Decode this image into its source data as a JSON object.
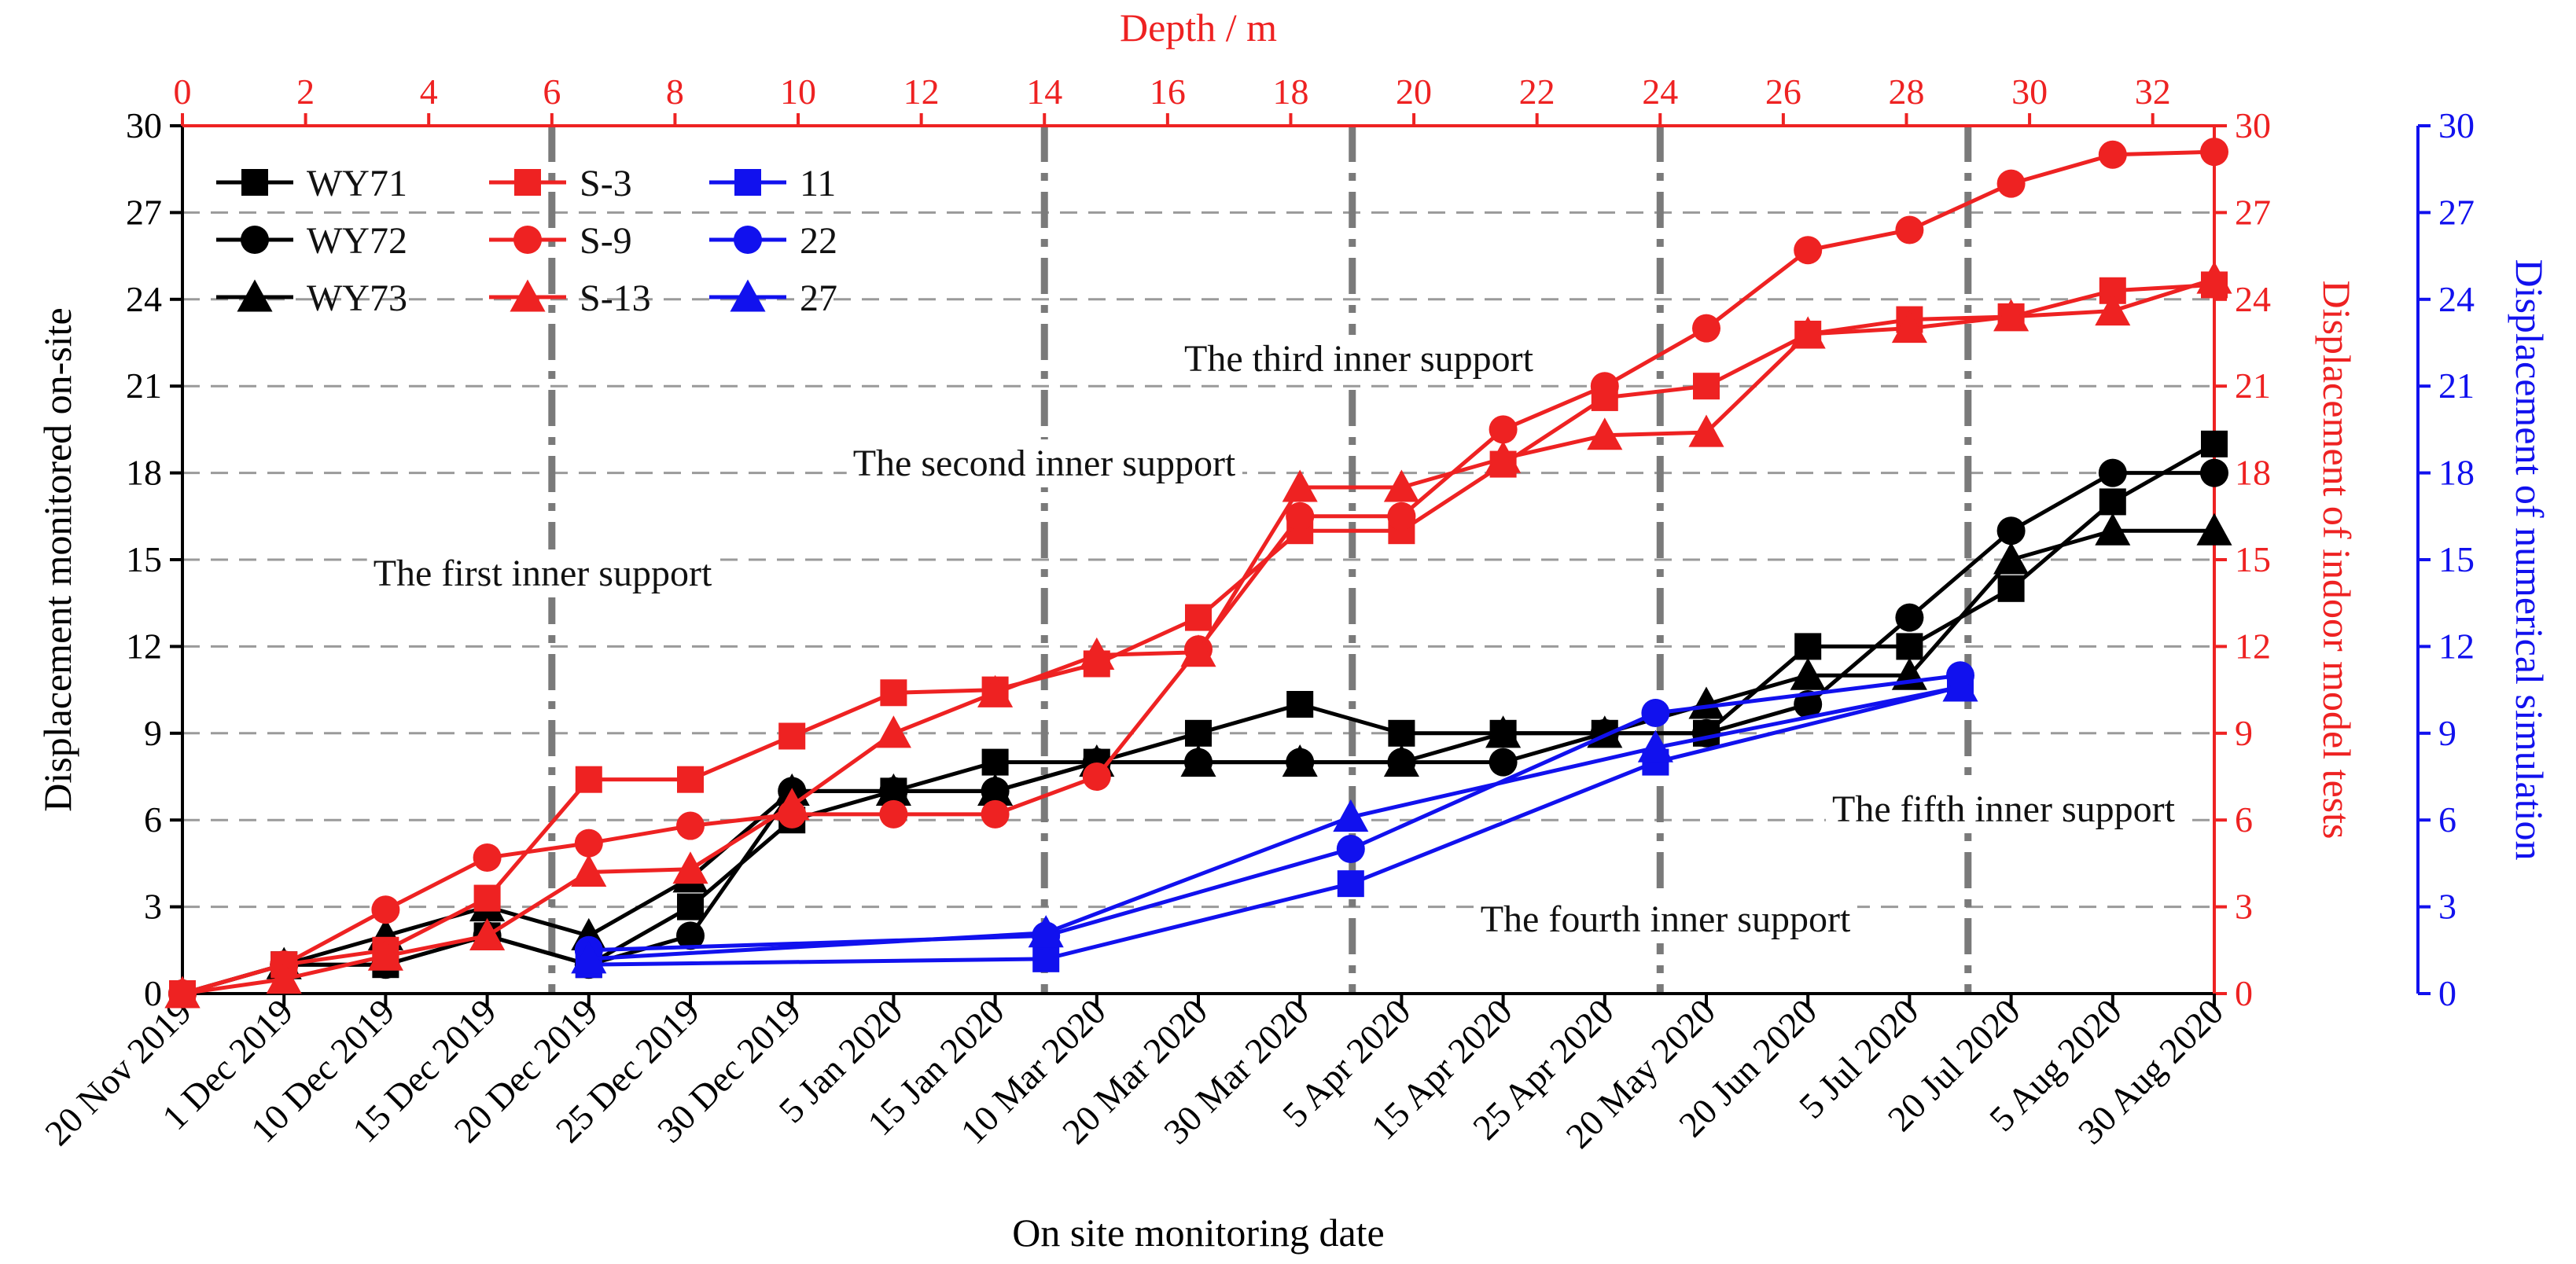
{
  "colors": {
    "black": "#000000",
    "red": "#ee2222",
    "blue": "#1111ee",
    "grid": "#9a9a9a",
    "vline": "#7a7a7a"
  },
  "chart_data": {
    "type": "line",
    "categories": [
      "20 Nov 2019",
      "1 Dec 2019",
      "10 Dec 2019",
      "15 Dec 2019",
      "20 Dec 2019",
      "25 Dec 2019",
      "30 Dec 2019",
      "5 Jan 2020",
      "15 Jan 2020",
      "10 Mar 2020",
      "20 Mar 2020",
      "30 Mar 2020",
      "5 Apr 2020",
      "15 Apr 2020",
      "25 Apr 2020",
      "20 May 2020",
      "20 Jun 2020",
      "5 Jul 2020",
      "20 Jul 2020",
      "5 Aug 2020",
      "30 Aug 2020"
    ],
    "xlabel": "On site monitoring date",
    "top_xlabel": "Depth / m",
    "top_xlim": [
      0,
      33
    ],
    "top_ticks": [
      "0",
      "2",
      "4",
      "6",
      "8",
      "10",
      "12",
      "14",
      "16",
      "18",
      "20",
      "22",
      "24",
      "26",
      "28",
      "30",
      "32"
    ],
    "ylabel_left": "Displacement monitored on-site",
    "ylabel_right1": "Displacement of indoor model tests",
    "ylabel_right2": "Displacement of numerical simulation",
    "ylim": [
      0,
      30
    ],
    "y_ticks": [
      "0",
      "3",
      "6",
      "9",
      "12",
      "15",
      "18",
      "21",
      "24",
      "27",
      "30"
    ],
    "grid": "horizontal dashed",
    "legend_position": "top-left",
    "series": [
      {
        "name": "WY71",
        "axis": "onsite",
        "color": "black",
        "marker": "square",
        "points": [
          [
            0,
            0
          ],
          [
            1,
            1
          ],
          [
            2,
            1
          ],
          [
            3,
            2
          ],
          [
            4,
            1
          ],
          [
            5,
            3
          ],
          [
            6,
            6
          ],
          [
            7,
            7
          ],
          [
            8,
            8
          ],
          [
            9,
            8
          ],
          [
            10,
            9
          ],
          [
            11,
            10
          ],
          [
            12,
            9
          ],
          [
            13,
            9
          ],
          [
            14,
            9
          ],
          [
            15,
            9
          ],
          [
            16,
            12
          ],
          [
            17,
            12
          ],
          [
            18,
            14
          ],
          [
            19,
            17
          ],
          [
            20,
            19
          ]
        ]
      },
      {
        "name": "WY72",
        "axis": "onsite",
        "color": "black",
        "marker": "circle",
        "points": [
          [
            0,
            0
          ],
          [
            1,
            1
          ],
          [
            2,
            1
          ],
          [
            3,
            2
          ],
          [
            4,
            1
          ],
          [
            5,
            2
          ],
          [
            6,
            7
          ],
          [
            7,
            7
          ],
          [
            8,
            7
          ],
          [
            9,
            8
          ],
          [
            10,
            8
          ],
          [
            11,
            8
          ],
          [
            12,
            8
          ],
          [
            13,
            8
          ],
          [
            14,
            9
          ],
          [
            15,
            9
          ],
          [
            16,
            10
          ],
          [
            17,
            13
          ],
          [
            18,
            16
          ],
          [
            19,
            18
          ],
          [
            20,
            18
          ]
        ]
      },
      {
        "name": "WY73",
        "axis": "onsite",
        "color": "black",
        "marker": "triangle",
        "points": [
          [
            0,
            0
          ],
          [
            1,
            1
          ],
          [
            2,
            2
          ],
          [
            3,
            3
          ],
          [
            4,
            2
          ],
          [
            5,
            4
          ],
          [
            6,
            7
          ],
          [
            7,
            7
          ],
          [
            8,
            7
          ],
          [
            9,
            8
          ],
          [
            10,
            8
          ],
          [
            11,
            8
          ],
          [
            12,
            8
          ],
          [
            13,
            9
          ],
          [
            14,
            9
          ],
          [
            15,
            10
          ],
          [
            16,
            11
          ],
          [
            17,
            11
          ],
          [
            18,
            15
          ],
          [
            19,
            16
          ],
          [
            20,
            16
          ]
        ]
      },
      {
        "name": "S-3",
        "axis": "indoor",
        "color": "red",
        "marker": "square",
        "points": [
          [
            0,
            0
          ],
          [
            1,
            1
          ],
          [
            2,
            1.5
          ],
          [
            3,
            3.3
          ],
          [
            4,
            7.4
          ],
          [
            5,
            7.4
          ],
          [
            6,
            8.9
          ],
          [
            7,
            10.4
          ],
          [
            8,
            10.5
          ],
          [
            9,
            11.4
          ],
          [
            10,
            13
          ],
          [
            11,
            16
          ],
          [
            12,
            16
          ],
          [
            13,
            18.3
          ],
          [
            14,
            20.6
          ],
          [
            15,
            21
          ],
          [
            16,
            22.8
          ],
          [
            17,
            23.3
          ],
          [
            18,
            23.4
          ],
          [
            19,
            24.3
          ],
          [
            20,
            24.5
          ]
        ]
      },
      {
        "name": "S-9",
        "axis": "indoor",
        "color": "red",
        "marker": "circle",
        "points": [
          [
            0,
            0
          ],
          [
            1,
            1
          ],
          [
            2,
            2.9
          ],
          [
            3,
            4.7
          ],
          [
            4,
            5.2
          ],
          [
            5,
            5.8
          ],
          [
            6,
            6.2
          ],
          [
            7,
            6.2
          ],
          [
            8,
            6.2
          ],
          [
            9,
            7.5
          ],
          [
            10,
            11.9
          ],
          [
            11,
            16.5
          ],
          [
            12,
            16.5
          ],
          [
            13,
            19.5
          ],
          [
            14,
            21
          ],
          [
            15,
            23
          ],
          [
            16,
            25.7
          ],
          [
            17,
            26.4
          ],
          [
            18,
            28
          ],
          [
            19,
            29
          ],
          [
            20,
            29.1
          ]
        ]
      },
      {
        "name": "S-13",
        "axis": "indoor",
        "color": "red",
        "marker": "triangle",
        "points": [
          [
            0,
            0
          ],
          [
            1,
            0.5
          ],
          [
            2,
            1.3
          ],
          [
            3,
            2
          ],
          [
            4,
            4.2
          ],
          [
            5,
            4.3
          ],
          [
            6,
            6.5
          ],
          [
            7,
            9
          ],
          [
            8,
            10.4
          ],
          [
            9,
            11.7
          ],
          [
            10,
            11.8
          ],
          [
            11,
            17.5
          ],
          [
            12,
            17.5
          ],
          [
            13,
            18.5
          ],
          [
            14,
            19.3
          ],
          [
            15,
            19.4
          ],
          [
            16,
            22.8
          ],
          [
            17,
            23
          ],
          [
            18,
            23.4
          ],
          [
            19,
            23.6
          ],
          [
            20,
            24.7
          ]
        ]
      },
      {
        "name": "11",
        "axis": "numerical",
        "color": "blue",
        "marker": "square",
        "points": [
          [
            4,
            1
          ],
          [
            8.5,
            1.2
          ],
          [
            11.5,
            3.8
          ],
          [
            14.5,
            8
          ],
          [
            17.5,
            10.6
          ]
        ]
      },
      {
        "name": "22",
        "axis": "numerical",
        "color": "blue",
        "marker": "circle",
        "points": [
          [
            4,
            1.5
          ],
          [
            8.5,
            2
          ],
          [
            11.5,
            5
          ],
          [
            14.5,
            9.7
          ],
          [
            17.5,
            11
          ]
        ]
      },
      {
        "name": "27",
        "axis": "numerical",
        "color": "blue",
        "marker": "triangle",
        "points": [
          [
            4,
            1.2
          ],
          [
            8.5,
            2.1
          ],
          [
            11.5,
            6.1
          ],
          [
            14.5,
            8.5
          ],
          [
            17.5,
            10.6
          ]
        ]
      }
    ],
    "support_lines_depth": [
      6,
      14,
      19,
      24,
      29
    ],
    "annotations": [
      {
        "label": "The first inner support",
        "near_depth": 6
      },
      {
        "label": "The second inner support",
        "near_depth": 14
      },
      {
        "label": "The third inner support",
        "near_depth": 19
      },
      {
        "label": "The fourth inner support",
        "near_depth": 24
      },
      {
        "label": "The fifth inner support",
        "near_depth": 29
      }
    ]
  }
}
